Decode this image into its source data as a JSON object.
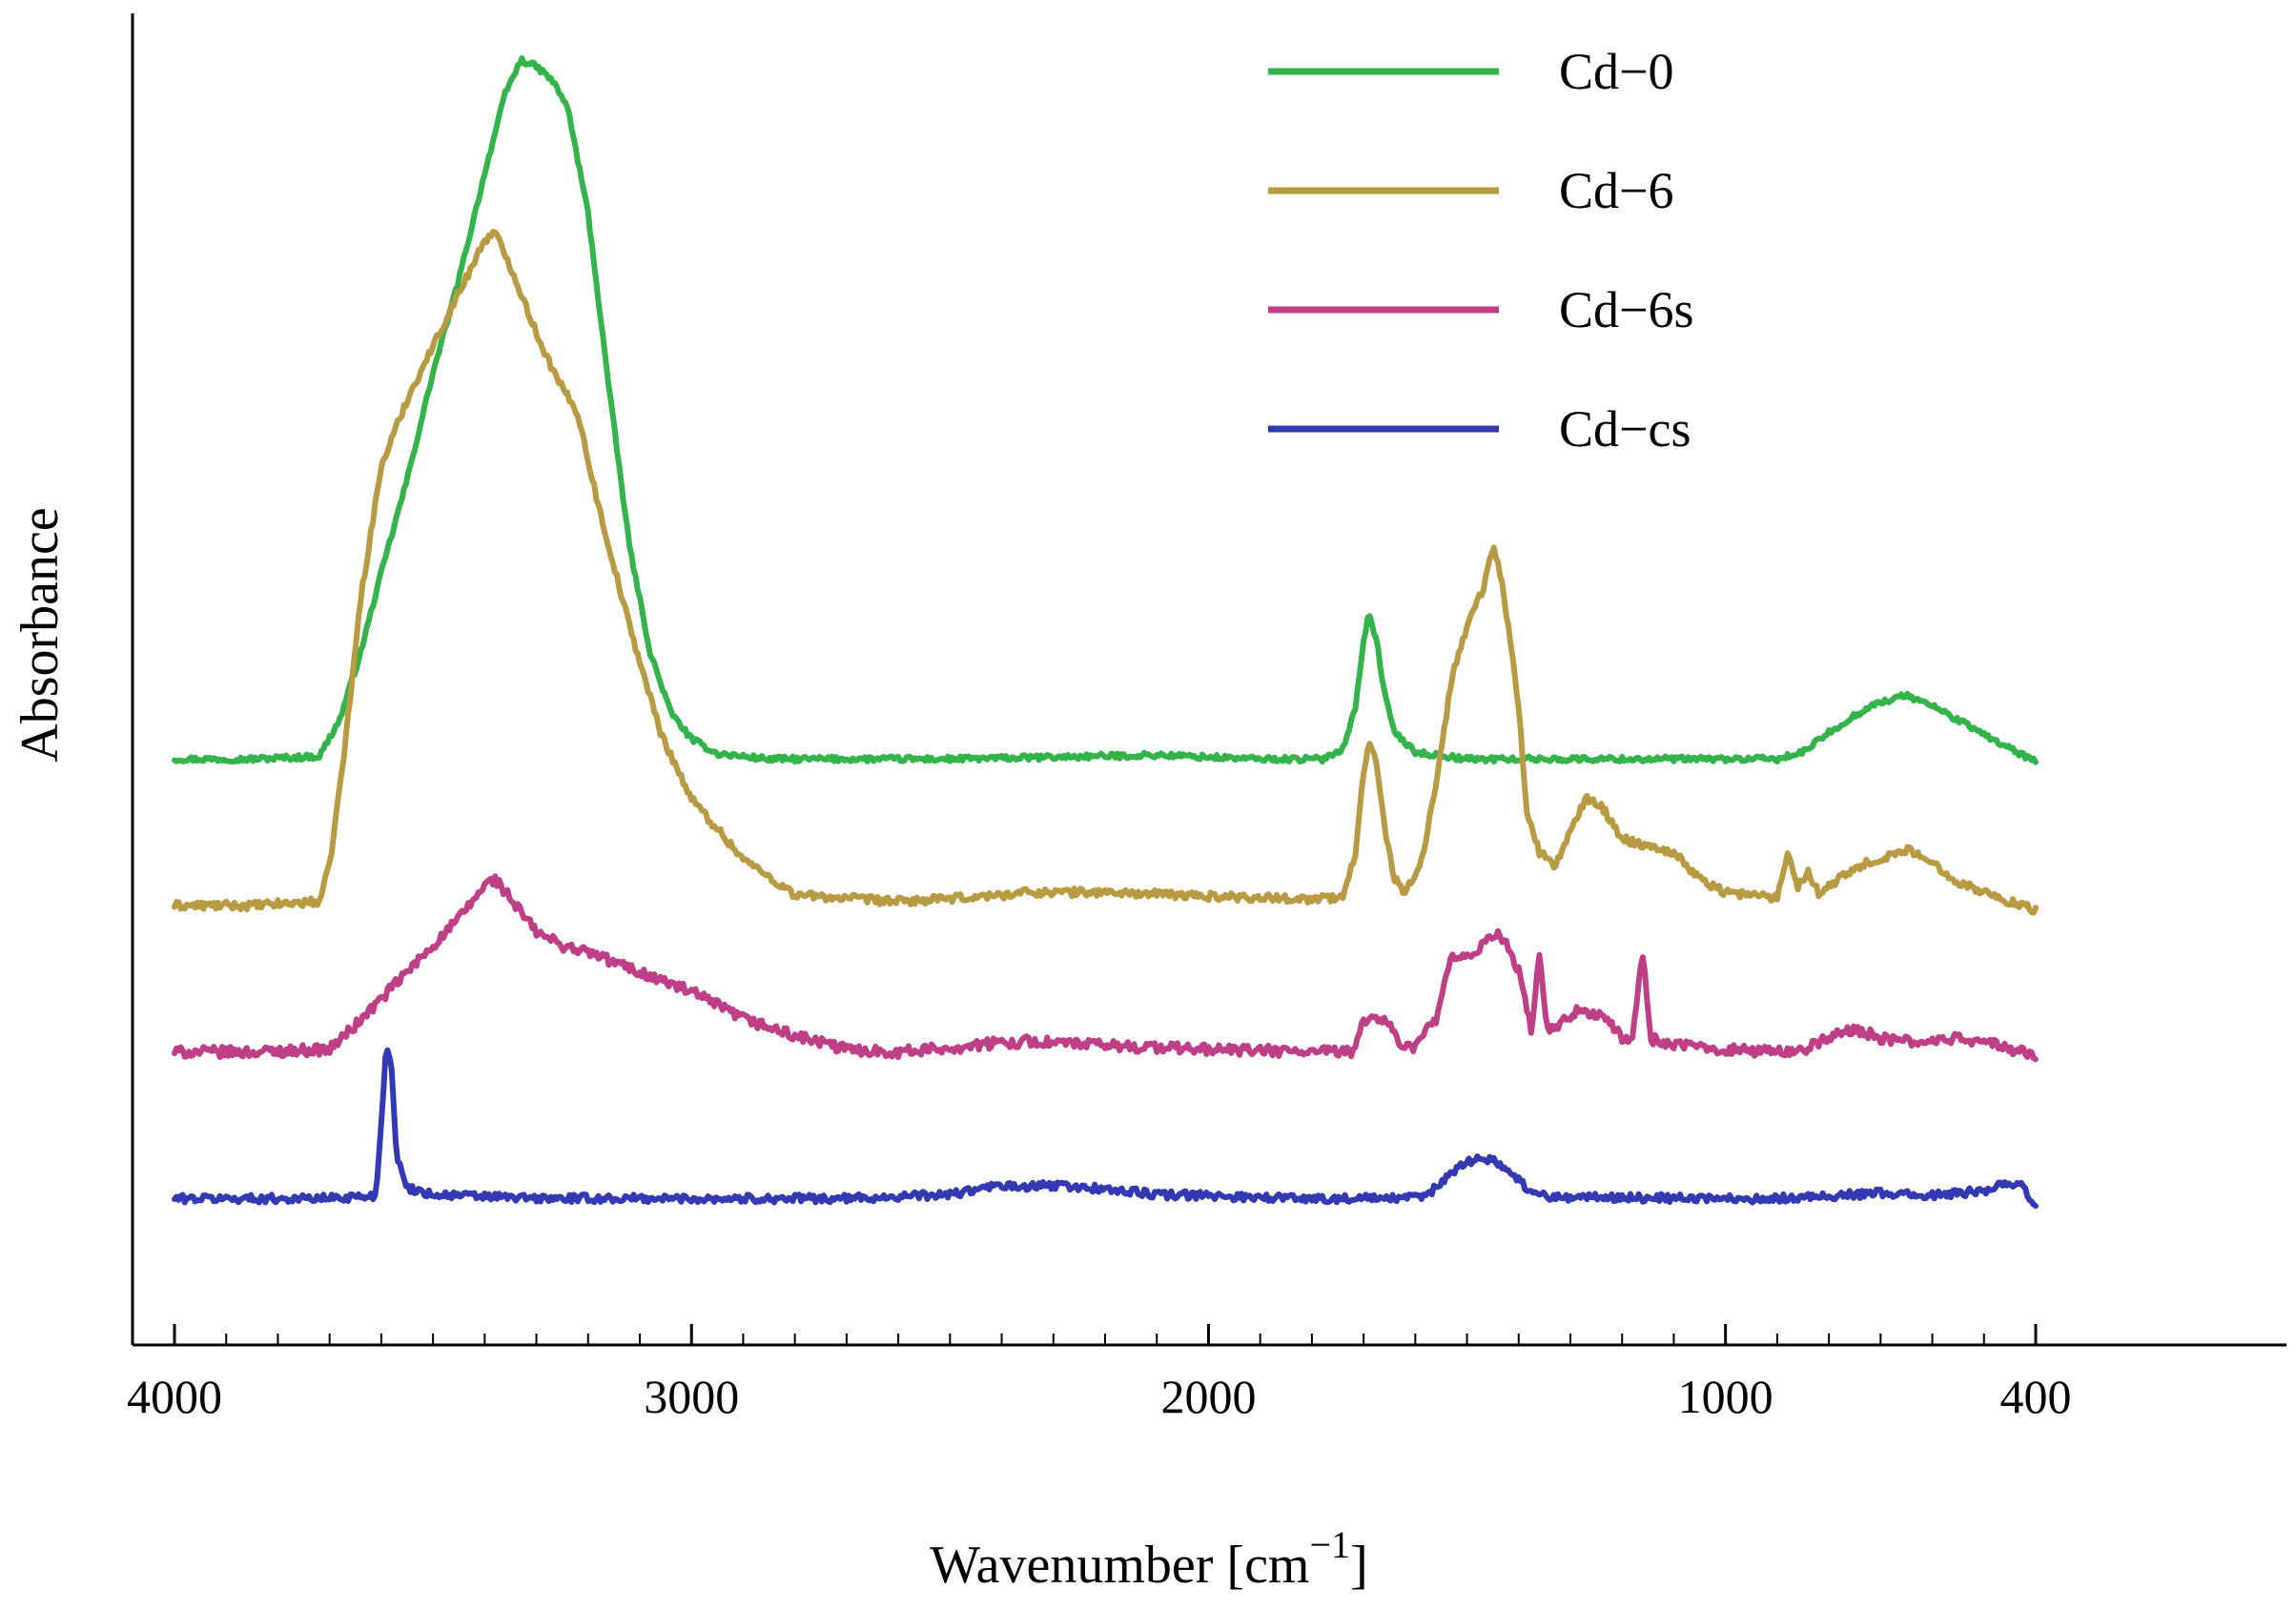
{
  "chart_data": {
    "type": "line",
    "title": "",
    "xlabel": "Wavenumber [cm",
    "xlabel_superscript": "−1",
    "xlabel_close": "]",
    "ylabel": "Absorbance",
    "x_reversed": true,
    "xlim": [
      4000,
      400
    ],
    "x_ticks": [
      {
        "value": 4000,
        "label": "4000"
      },
      {
        "value": 3000,
        "label": "3000"
      },
      {
        "value": 2000,
        "label": "2000"
      },
      {
        "value": 1000,
        "label": "1000"
      },
      {
        "value": 400,
        "label": "400"
      }
    ],
    "x_minor_step": 100,
    "y_ticks": [],
    "ylim": [
      0,
      1
    ],
    "grid": false,
    "legend_position": "top-right",
    "series": [
      {
        "name": "Cd−0",
        "color": "#33b44a",
        "noise": 0.002,
        "points": [
          [
            4000,
            0.44
          ],
          [
            3850,
            0.44
          ],
          [
            3720,
            0.442
          ],
          [
            3680,
            0.47
          ],
          [
            3640,
            0.52
          ],
          [
            3600,
            0.58
          ],
          [
            3550,
            0.65
          ],
          [
            3500,
            0.73
          ],
          [
            3450,
            0.8
          ],
          [
            3400,
            0.88
          ],
          [
            3360,
            0.94
          ],
          [
            3330,
            0.965
          ],
          [
            3300,
            0.96
          ],
          [
            3270,
            0.95
          ],
          [
            3240,
            0.93
          ],
          [
            3200,
            0.85
          ],
          [
            3160,
            0.72
          ],
          [
            3120,
            0.6
          ],
          [
            3080,
            0.52
          ],
          [
            3040,
            0.475
          ],
          [
            3000,
            0.455
          ],
          [
            2950,
            0.444
          ],
          [
            2850,
            0.44
          ],
          [
            2500,
            0.44
          ],
          [
            2350,
            0.441
          ],
          [
            2100,
            0.443
          ],
          [
            1900,
            0.44
          ],
          [
            1780,
            0.44
          ],
          [
            1740,
            0.448
          ],
          [
            1715,
            0.48
          ],
          [
            1700,
            0.53
          ],
          [
            1690,
            0.548
          ],
          [
            1675,
            0.53
          ],
          [
            1660,
            0.49
          ],
          [
            1640,
            0.46
          ],
          [
            1600,
            0.445
          ],
          [
            1500,
            0.44
          ],
          [
            1000,
            0.44
          ],
          [
            900,
            0.44
          ],
          [
            850,
            0.445
          ],
          [
            800,
            0.46
          ],
          [
            720,
            0.48
          ],
          [
            650,
            0.488
          ],
          [
            600,
            0.48
          ],
          [
            530,
            0.465
          ],
          [
            460,
            0.45
          ],
          [
            400,
            0.438
          ]
        ]
      },
      {
        "name": "Cd−6",
        "color": "#b89a42",
        "noise": 0.003,
        "points": [
          [
            4000,
            0.33
          ],
          [
            3850,
            0.33
          ],
          [
            3720,
            0.333
          ],
          [
            3700,
            0.36
          ],
          [
            3670,
            0.45
          ],
          [
            3640,
            0.56
          ],
          [
            3600,
            0.66
          ],
          [
            3550,
            0.71
          ],
          [
            3500,
            0.75
          ],
          [
            3450,
            0.79
          ],
          [
            3400,
            0.83
          ],
          [
            3380,
            0.835
          ],
          [
            3350,
            0.81
          ],
          [
            3300,
            0.76
          ],
          [
            3260,
            0.725
          ],
          [
            3220,
            0.7
          ],
          [
            3180,
            0.63
          ],
          [
            3120,
            0.54
          ],
          [
            3060,
            0.46
          ],
          [
            3000,
            0.41
          ],
          [
            2900,
            0.365
          ],
          [
            2800,
            0.338
          ],
          [
            2600,
            0.333
          ],
          [
            2500,
            0.335
          ],
          [
            2400,
            0.338
          ],
          [
            2350,
            0.34
          ],
          [
            2200,
            0.34
          ],
          [
            2000,
            0.337
          ],
          [
            1800,
            0.335
          ],
          [
            1740,
            0.336
          ],
          [
            1715,
            0.37
          ],
          [
            1700,
            0.43
          ],
          [
            1690,
            0.455
          ],
          [
            1675,
            0.44
          ],
          [
            1660,
            0.39
          ],
          [
            1640,
            0.35
          ],
          [
            1620,
            0.34
          ],
          [
            1590,
            0.36
          ],
          [
            1560,
            0.42
          ],
          [
            1530,
            0.5
          ],
          [
            1500,
            0.54
          ],
          [
            1480,
            0.56
          ],
          [
            1470,
            0.565
          ],
          [
            1450,
            0.6
          ],
          [
            1440,
            0.59
          ],
          [
            1420,
            0.54
          ],
          [
            1400,
            0.48
          ],
          [
            1385,
            0.4
          ],
          [
            1360,
            0.37
          ],
          [
            1330,
            0.36
          ],
          [
            1300,
            0.385
          ],
          [
            1270,
            0.41
          ],
          [
            1240,
            0.405
          ],
          [
            1200,
            0.38
          ],
          [
            1150,
            0.375
          ],
          [
            1100,
            0.37
          ],
          [
            1050,
            0.35
          ],
          [
            1000,
            0.34
          ],
          [
            950,
            0.338
          ],
          [
            900,
            0.336
          ],
          [
            880,
            0.37
          ],
          [
            860,
            0.345
          ],
          [
            840,
            0.355
          ],
          [
            820,
            0.34
          ],
          [
            780,
            0.35
          ],
          [
            740,
            0.36
          ],
          [
            700,
            0.365
          ],
          [
            650,
            0.372
          ],
          [
            600,
            0.362
          ],
          [
            550,
            0.348
          ],
          [
            500,
            0.34
          ],
          [
            430,
            0.33
          ],
          [
            400,
            0.327
          ]
        ]
      },
      {
        "name": "Cd−6s",
        "color": "#be3f86",
        "noise": 0.004,
        "points": [
          [
            4000,
            0.22
          ],
          [
            3850,
            0.22
          ],
          [
            3700,
            0.222
          ],
          [
            3650,
            0.24
          ],
          [
            3600,
            0.26
          ],
          [
            3550,
            0.28
          ],
          [
            3500,
            0.3
          ],
          [
            3450,
            0.32
          ],
          [
            3400,
            0.345
          ],
          [
            3380,
            0.35
          ],
          [
            3340,
            0.33
          ],
          [
            3300,
            0.31
          ],
          [
            3250,
            0.3
          ],
          [
            3200,
            0.295
          ],
          [
            3100,
            0.28
          ],
          [
            3000,
            0.265
          ],
          [
            2950,
            0.255
          ],
          [
            2900,
            0.245
          ],
          [
            2800,
            0.232
          ],
          [
            2700,
            0.222
          ],
          [
            2600,
            0.22
          ],
          [
            2500,
            0.223
          ],
          [
            2400,
            0.227
          ],
          [
            2350,
            0.228
          ],
          [
            2200,
            0.225
          ],
          [
            2000,
            0.222
          ],
          [
            1800,
            0.22
          ],
          [
            1720,
            0.22
          ],
          [
            1700,
            0.245
          ],
          [
            1660,
            0.245
          ],
          [
            1620,
            0.222
          ],
          [
            1600,
            0.225
          ],
          [
            1560,
            0.245
          ],
          [
            1530,
            0.29
          ],
          [
            1500,
            0.29
          ],
          [
            1470,
            0.3
          ],
          [
            1440,
            0.31
          ],
          [
            1420,
            0.3
          ],
          [
            1400,
            0.28
          ],
          [
            1375,
            0.235
          ],
          [
            1360,
            0.295
          ],
          [
            1345,
            0.235
          ],
          [
            1320,
            0.24
          ],
          [
            1290,
            0.25
          ],
          [
            1260,
            0.25
          ],
          [
            1230,
            0.245
          ],
          [
            1200,
            0.23
          ],
          [
            1180,
            0.23
          ],
          [
            1160,
            0.295
          ],
          [
            1145,
            0.23
          ],
          [
            1100,
            0.225
          ],
          [
            1000,
            0.222
          ],
          [
            900,
            0.22
          ],
          [
            850,
            0.222
          ],
          [
            800,
            0.23
          ],
          [
            750,
            0.238
          ],
          [
            700,
            0.23
          ],
          [
            650,
            0.228
          ],
          [
            600,
            0.228
          ],
          [
            550,
            0.23
          ],
          [
            500,
            0.228
          ],
          [
            450,
            0.222
          ],
          [
            400,
            0.218
          ]
        ]
      },
      {
        "name": "Cd−cs",
        "color": "#3339b2",
        "noise": 0.003,
        "points": [
          [
            4000,
            0.11
          ],
          [
            3850,
            0.11
          ],
          [
            3720,
            0.11
          ],
          [
            3610,
            0.112
          ],
          [
            3600,
            0.17
          ],
          [
            3590,
            0.225
          ],
          [
            3580,
            0.21
          ],
          [
            3570,
            0.14
          ],
          [
            3550,
            0.118
          ],
          [
            3500,
            0.113
          ],
          [
            3300,
            0.11
          ],
          [
            3000,
            0.11
          ],
          [
            2700,
            0.11
          ],
          [
            2500,
            0.113
          ],
          [
            2400,
            0.12
          ],
          [
            2370,
            0.118
          ],
          [
            2300,
            0.12
          ],
          [
            2200,
            0.117
          ],
          [
            2100,
            0.113
          ],
          [
            2000,
            0.112
          ],
          [
            1800,
            0.11
          ],
          [
            1620,
            0.11
          ],
          [
            1580,
            0.112
          ],
          [
            1560,
            0.118
          ],
          [
            1530,
            0.13
          ],
          [
            1500,
            0.138
          ],
          [
            1470,
            0.14
          ],
          [
            1440,
            0.137
          ],
          [
            1410,
            0.128
          ],
          [
            1380,
            0.116
          ],
          [
            1350,
            0.112
          ],
          [
            1300,
            0.111
          ],
          [
            1000,
            0.11
          ],
          [
            900,
            0.11
          ],
          [
            800,
            0.112
          ],
          [
            700,
            0.114
          ],
          [
            600,
            0.112
          ],
          [
            500,
            0.116
          ],
          [
            460,
            0.122
          ],
          [
            430,
            0.12
          ],
          [
            410,
            0.11
          ],
          [
            400,
            0.105
          ]
        ]
      }
    ]
  }
}
